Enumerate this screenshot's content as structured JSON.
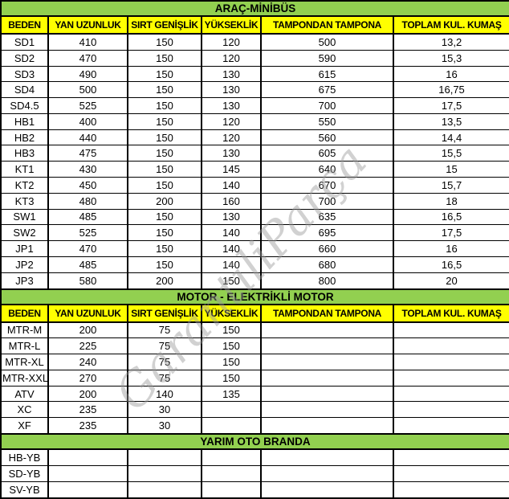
{
  "columns": [
    "BEDEN",
    "YAN UZUNLUK",
    "SIRT GENİŞLİK",
    "YÜKSEKLİK",
    "TAMPONDAN TAMPONA",
    "TOPLAM KUL. KUMAŞ"
  ],
  "watermark": {
    "text": "GarantiliParça"
  },
  "colors": {
    "section_banner_green": "#92d050",
    "header_yellow": "#ffff00",
    "border_black": "#000000",
    "watermark_gray": "#9a9a9a"
  },
  "chart_data": [
    {
      "type": "table",
      "title": "ARAÇ-MİNİBÜS",
      "show_header": true,
      "columns": [
        "BEDEN",
        "YAN UZUNLUK",
        "SIRT GENİŞLİK",
        "YÜKSEKLİK",
        "TAMPONDAN TAMPONA",
        "TOPLAM KUL. KUMAŞ"
      ],
      "rows": [
        [
          "SD1",
          "410",
          "150",
          "120",
          "500",
          "13,2"
        ],
        [
          "SD2",
          "470",
          "150",
          "120",
          "590",
          "15,3"
        ],
        [
          "SD3",
          "490",
          "150",
          "130",
          "615",
          "16"
        ],
        [
          "SD4",
          "500",
          "150",
          "130",
          "675",
          "16,75"
        ],
        [
          "SD4.5",
          "525",
          "150",
          "130",
          "700",
          "17,5"
        ],
        [
          "HB1",
          "400",
          "150",
          "120",
          "550",
          "13,5"
        ],
        [
          "HB2",
          "440",
          "150",
          "120",
          "560",
          "14,4"
        ],
        [
          "HB3",
          "475",
          "150",
          "130",
          "605",
          "15,5"
        ],
        [
          "KT1",
          "430",
          "150",
          "145",
          "640",
          "15"
        ],
        [
          "KT2",
          "450",
          "150",
          "140",
          "670",
          "15,7"
        ],
        [
          "KT3",
          "480",
          "200",
          "160",
          "700",
          "18"
        ],
        [
          "SW1",
          "485",
          "150",
          "130",
          "635",
          "16,5"
        ],
        [
          "SW2",
          "525",
          "150",
          "140",
          "695",
          "17,5"
        ],
        [
          "JP1",
          "470",
          "150",
          "140",
          "660",
          "16"
        ],
        [
          "JP2",
          "485",
          "150",
          "140",
          "680",
          "16,5"
        ],
        [
          "JP3",
          "580",
          "200",
          "150",
          "800",
          "20"
        ]
      ]
    },
    {
      "type": "table",
      "title": "MOTOR - ELEKTRİKLİ MOTOR",
      "show_header": true,
      "columns": [
        "BEDEN",
        "YAN UZUNLUK",
        "SIRT GENİŞLİK",
        "YÜKSEKLİK",
        "TAMPONDAN TAMPONA",
        "TOPLAM KUL. KUMAŞ"
      ],
      "rows": [
        [
          "MTR-M",
          "200",
          "75",
          "150",
          "",
          ""
        ],
        [
          "MTR-L",
          "225",
          "75",
          "150",
          "",
          ""
        ],
        [
          "MTR-XL",
          "240",
          "75",
          "150",
          "",
          ""
        ],
        [
          "MTR-XXL",
          "270",
          "75",
          "150",
          "",
          ""
        ],
        [
          "ATV",
          "200",
          "140",
          "135",
          "",
          ""
        ],
        [
          "XC",
          "235",
          "30",
          "",
          "",
          ""
        ],
        [
          "XF",
          "235",
          "30",
          "",
          "",
          ""
        ]
      ]
    },
    {
      "type": "table",
      "title": "YARIM OTO BRANDA",
      "show_header": false,
      "columns": [],
      "rows": [
        [
          "HB-YB",
          "",
          "",
          "",
          "",
          ""
        ],
        [
          "SD-YB",
          "",
          "",
          "",
          "",
          ""
        ],
        [
          "SV-YB",
          "",
          "",
          "",
          "",
          ""
        ]
      ]
    }
  ]
}
